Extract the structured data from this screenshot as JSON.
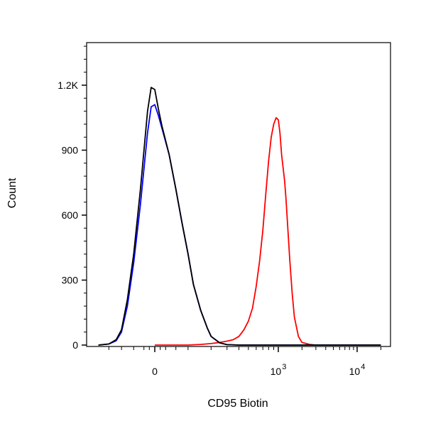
{
  "chart_data": {
    "type": "line",
    "title": "",
    "xlabel": "CD95 Biotin",
    "ylabel": "Count",
    "x_scale": "biexponential",
    "x_ticks": [
      {
        "value": 0,
        "label": "0",
        "exp": ""
      },
      {
        "value": 1000,
        "label": "10",
        "exp": "3"
      },
      {
        "value": 10000,
        "label": "10",
        "exp": "4"
      }
    ],
    "y_ticks": [
      {
        "value": 0,
        "label": "0"
      },
      {
        "value": 300,
        "label": "300"
      },
      {
        "value": 600,
        "label": "600"
      },
      {
        "value": 900,
        "label": "900"
      },
      {
        "value": 1200,
        "label": "1.2K"
      }
    ],
    "ylim": [
      0,
      1400
    ],
    "grid": false,
    "series": [
      {
        "color": "#ff0000",
        "x": [
          0,
          100,
          150,
          200,
          250,
          300,
          350,
          400,
          450,
          500,
          550,
          600,
          650,
          700,
          750,
          800,
          850,
          900,
          950,
          1000,
          1050,
          1100,
          1150,
          1200,
          1250,
          1300,
          1400,
          1500,
          1600,
          1800,
          2000,
          2500,
          3000,
          5000,
          10000,
          20000
        ],
        "y": [
          0,
          0,
          3,
          7,
          12,
          18,
          25,
          40,
          70,
          110,
          170,
          270,
          390,
          530,
          700,
          850,
          960,
          1020,
          1050,
          1040,
          980,
          880,
          820,
          760,
          680,
          580,
          390,
          240,
          130,
          40,
          12,
          3,
          0,
          0,
          0,
          0
        ]
      },
      {
        "color": "#0000ff",
        "x": [
          -200,
          -150,
          -120,
          -100,
          -80,
          -60,
          -40,
          -20,
          -10,
          0,
          10,
          20,
          40,
          60,
          80,
          100,
          120,
          150,
          180,
          200,
          250,
          300,
          400,
          1000,
          20000
        ],
        "y": [
          0,
          5,
          20,
          60,
          180,
          380,
          650,
          980,
          1100,
          1110,
          1060,
          1000,
          880,
          720,
          560,
          420,
          280,
          160,
          80,
          40,
          10,
          2,
          0,
          0,
          0
        ]
      },
      {
        "color": "#000000",
        "x": [
          -200,
          -150,
          -120,
          -100,
          -80,
          -60,
          -40,
          -20,
          -10,
          0,
          10,
          20,
          40,
          60,
          80,
          100,
          120,
          150,
          180,
          200,
          250,
          300,
          400,
          1000,
          20000
        ],
        "y": [
          0,
          5,
          25,
          70,
          210,
          420,
          720,
          1080,
          1190,
          1180,
          1090,
          1010,
          880,
          720,
          560,
          420,
          280,
          160,
          80,
          40,
          10,
          2,
          0,
          0,
          0
        ]
      }
    ]
  }
}
